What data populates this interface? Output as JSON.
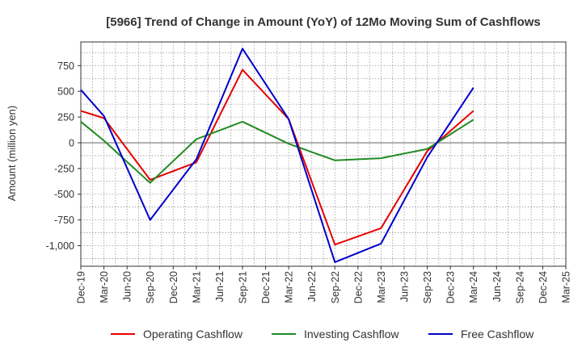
{
  "chart_data": {
    "type": "line",
    "title": "[5966]  Trend of Change in Amount (YoY) of 12Mo Moving Sum of Cashflows",
    "xlabel": "",
    "ylabel": "Amount (million yen)",
    "ylim": [
      -1200,
      980
    ],
    "yticks": [
      -1000,
      -750,
      -500,
      -250,
      0,
      250,
      500,
      750
    ],
    "ytick_labels": [
      "-1,000",
      "-750",
      "-500",
      "-250",
      "0",
      "250",
      "500",
      "750"
    ],
    "categories": [
      "Dec-19",
      "Mar-20",
      "Jun-20",
      "Sep-20",
      "Dec-20",
      "Mar-21",
      "Jun-21",
      "Sep-21",
      "Dec-21",
      "Mar-22",
      "Jun-22",
      "Sep-22",
      "Dec-22",
      "Mar-23",
      "Jun-23",
      "Sep-23",
      "Dec-23",
      "Mar-24",
      "Jun-24",
      "Sep-24",
      "Dec-24",
      "Mar-25"
    ],
    "grid": true,
    "legend_position": "bottom",
    "series": [
      {
        "name": "Operating Cashflow",
        "color": "#e60000",
        "values": [
          310,
          240,
          null,
          -360,
          null,
          -190,
          null,
          710,
          null,
          230,
          null,
          -990,
          null,
          -830,
          null,
          -80,
          null,
          310,
          null,
          null,
          null,
          null
        ]
      },
      {
        "name": "Investing Cashflow",
        "color": "#228b22",
        "values": [
          205,
          20,
          null,
          -390,
          null,
          35,
          null,
          205,
          null,
          -10,
          null,
          -170,
          null,
          -150,
          null,
          -60,
          null,
          225,
          null,
          null,
          null,
          null
        ]
      },
      {
        "name": "Free Cashflow",
        "color": "#0000cc",
        "values": [
          515,
          260,
          null,
          -750,
          null,
          -160,
          null,
          915,
          null,
          230,
          null,
          -1160,
          null,
          -980,
          null,
          -140,
          null,
          535,
          null,
          null,
          null,
          null
        ]
      }
    ]
  }
}
